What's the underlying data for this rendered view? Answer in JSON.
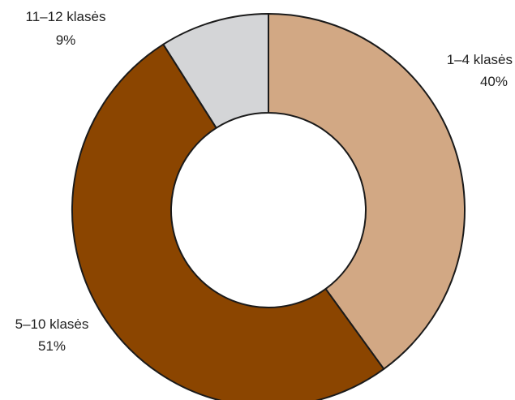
{
  "chart_data": {
    "type": "pie",
    "style": "donut",
    "title": "",
    "slices": [
      {
        "label": "1–4 klasės",
        "value": 40,
        "value_label": "40%",
        "color": "#D2A884"
      },
      {
        "label": "5–10 klasės",
        "value": 51,
        "value_label": "51%",
        "color": "#8B4500"
      },
      {
        "label": "11–12 klasės",
        "value": 9,
        "value_label": "9%",
        "color": "#D4D5D7"
      }
    ],
    "start_position": "top",
    "direction": "clockwise",
    "legend": "none"
  }
}
